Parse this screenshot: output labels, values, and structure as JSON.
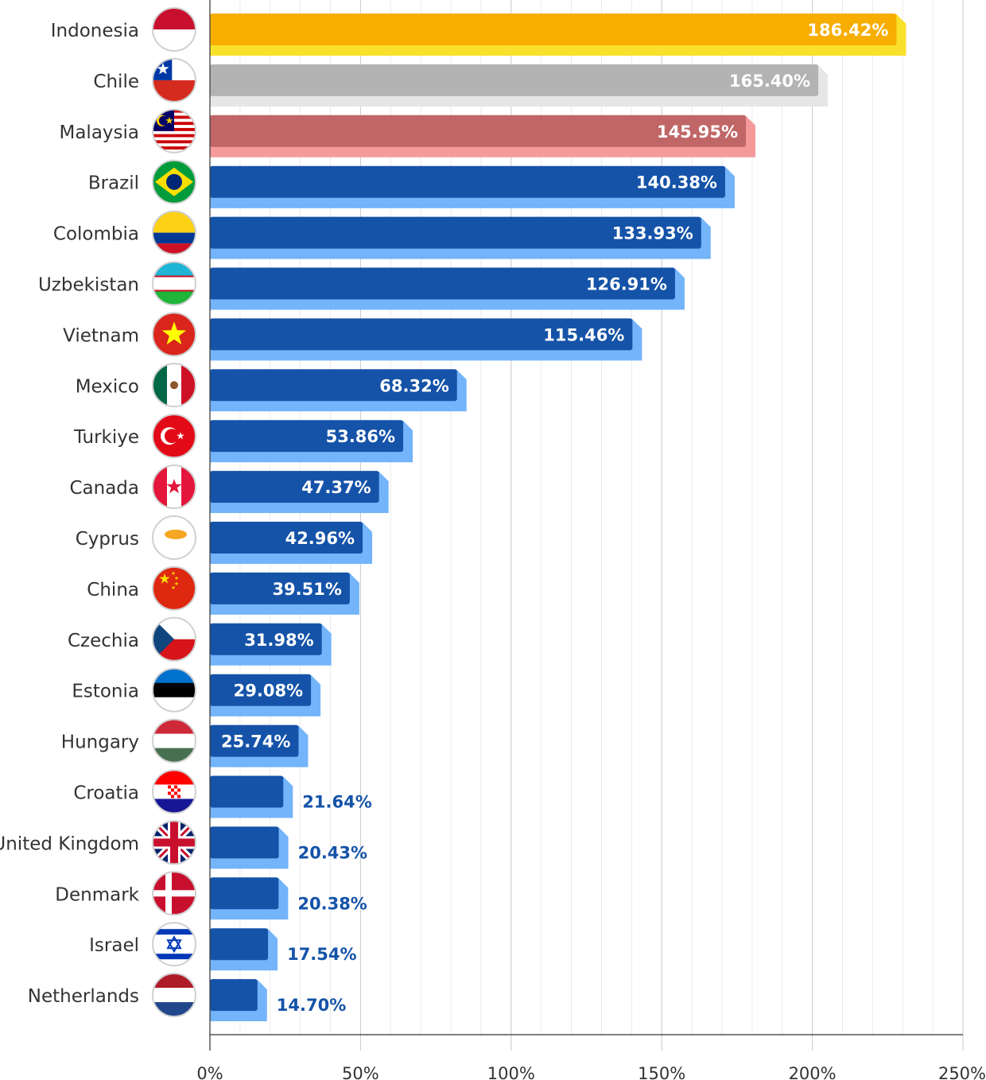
{
  "chart_data": {
    "type": "bar",
    "orientation": "horizontal",
    "title": "",
    "xlabel": "",
    "ylabel": "",
    "xlim": [
      0,
      250
    ],
    "x_ticks": [
      "0%",
      "50%",
      "100%",
      "150%",
      "200%",
      "250%"
    ],
    "x_tick_values": [
      0,
      50,
      100,
      150,
      200,
      250
    ],
    "minor_grid_step": 10,
    "grid": true,
    "legend": "none",
    "categories": [
      "Indonesia",
      "Chile",
      "Malaysia",
      "Brazil",
      "Colombia",
      "Uzbekistan",
      "Vietnam",
      "Mexico",
      "Turkiye",
      "Canada",
      "Cyprus",
      "China",
      "Czechia",
      "Estonia",
      "Hungary",
      "Croatia",
      "United Kingdom",
      "Denmark",
      "Israel",
      "Netherlands"
    ],
    "values": [
      186.42,
      165.4,
      145.95,
      140.38,
      133.93,
      126.91,
      115.46,
      68.32,
      53.86,
      47.37,
      42.96,
      39.51,
      31.98,
      29.08,
      25.74,
      21.64,
      20.43,
      20.38,
      17.54,
      14.7
    ],
    "value_labels": [
      "186.42%",
      "165.40%",
      "145.95%",
      "140.38%",
      "133.93%",
      "126.91%",
      "115.46%",
      "68.32%",
      "53.86%",
      "47.37%",
      "42.96%",
      "39.51%",
      "31.98%",
      "29.08%",
      "25.74%",
      "21.64%",
      "20.43%",
      "20.38%",
      "17.54%",
      "14.70%"
    ],
    "flags": [
      "indonesia-flag",
      "chile-flag",
      "malaysia-flag",
      "brazil-flag",
      "colombia-flag",
      "uzbekistan-flag",
      "vietnam-flag",
      "mexico-flag",
      "turkiye-flag",
      "canada-flag",
      "cyprus-flag",
      "china-flag",
      "czechia-flag",
      "estonia-flag",
      "hungary-flag",
      "croatia-flag",
      "united-kingdom-flag",
      "denmark-flag",
      "israel-flag",
      "netherlands-flag"
    ],
    "bar_colors": {
      "gold": {
        "front": "#F7AE00",
        "back": "#F9E02B"
      },
      "silver": {
        "front": "#B3B3B3",
        "back": "#E6E6E6"
      },
      "bronze": {
        "front": "#C06667",
        "back": "#F59A9B"
      },
      "default": {
        "front": "#1553A8",
        "back": "#73B4FA"
      }
    },
    "label_colors": {
      "inside": "#FFFFFF",
      "outside": "#1553A8"
    }
  }
}
